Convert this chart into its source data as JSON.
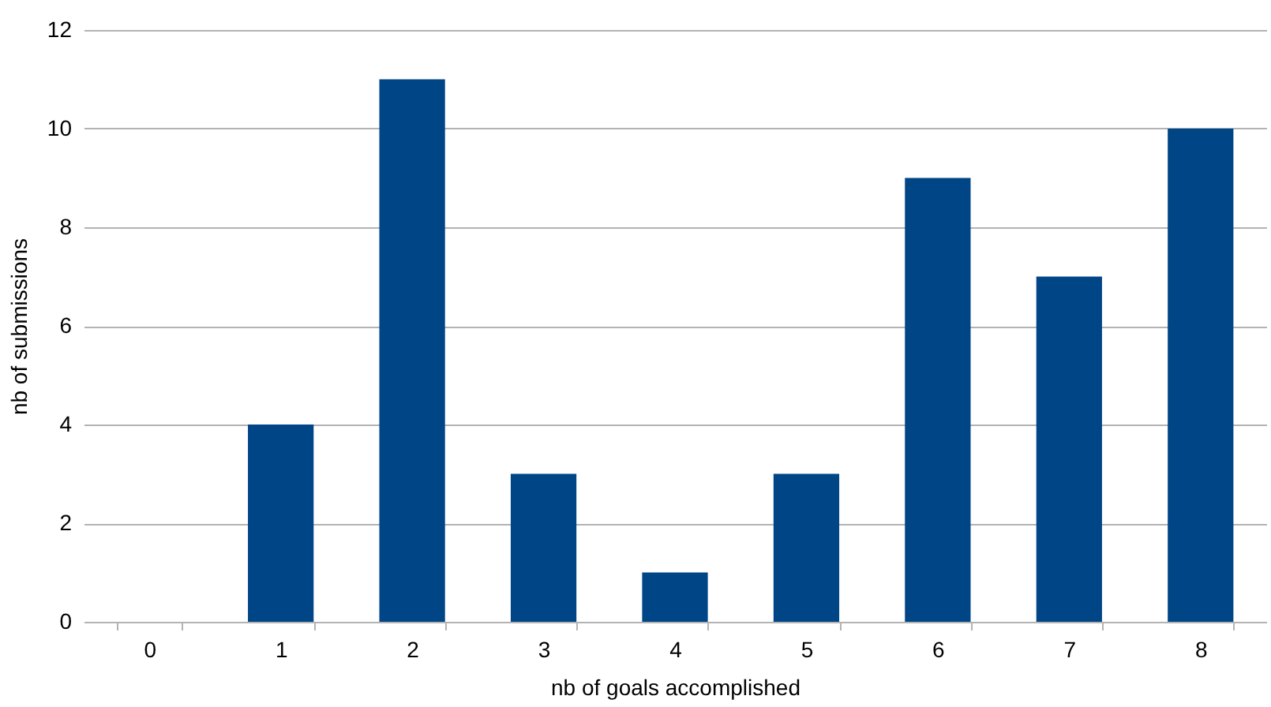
{
  "chart_data": {
    "type": "bar",
    "xlabel": "nb of goals accomplished",
    "ylabel": "nb of submissions",
    "categories": [
      "0",
      "1",
      "2",
      "3",
      "4",
      "5",
      "6",
      "7",
      "8"
    ],
    "values": [
      0,
      4,
      11,
      3,
      1,
      3,
      9,
      7,
      10
    ],
    "color": "#004586",
    "ylim": [
      0,
      12
    ],
    "yticks": [
      0,
      2,
      4,
      6,
      8,
      10,
      12
    ],
    "grid": "y"
  }
}
